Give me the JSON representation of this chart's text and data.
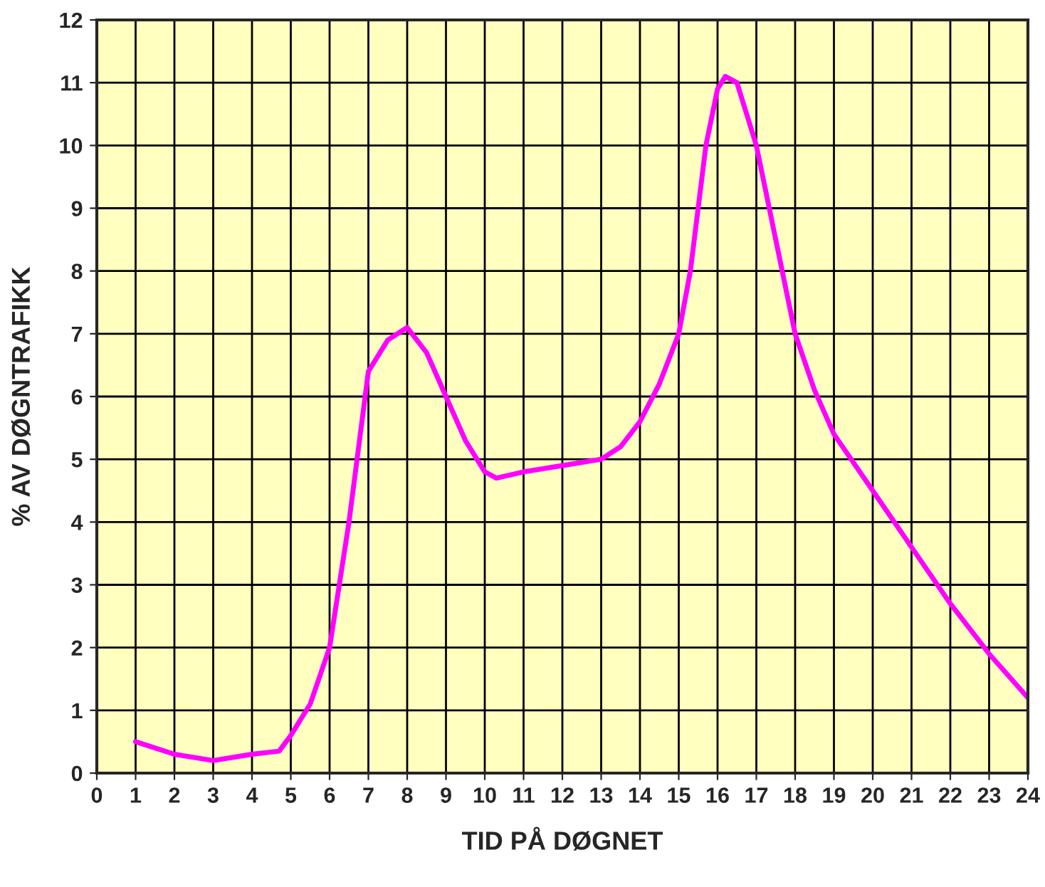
{
  "chart_data": {
    "type": "line",
    "xlabel": "TID PÅ DØGNET",
    "ylabel": "% AV DØGNTRAFIKK",
    "x": [
      1,
      2,
      3,
      4,
      4.7,
      5,
      5.5,
      6,
      6.5,
      7,
      7.5,
      8,
      8.5,
      9,
      9.5,
      10,
      10.3,
      11,
      12,
      13,
      13.5,
      14,
      14.5,
      15,
      15.3,
      15.7,
      16,
      16.2,
      16.5,
      17,
      17.5,
      18,
      18.5,
      19,
      20,
      21,
      22,
      23,
      24
    ],
    "series": [
      {
        "color": "#ff00ff",
        "values": [
          0.5,
          0.3,
          0.2,
          0.3,
          0.35,
          0.6,
          1.1,
          2,
          4,
          6.4,
          6.9,
          7.1,
          6.7,
          6,
          5.3,
          4.8,
          4.7,
          4.8,
          4.9,
          5,
          5.2,
          5.6,
          6.2,
          7,
          8,
          10,
          10.9,
          11.1,
          11,
          10,
          8.5,
          7,
          6.1,
          5.4,
          4.5,
          3.6,
          2.7,
          1.9,
          1.2
        ]
      }
    ],
    "xlim": [
      0,
      24
    ],
    "ylim": [
      0,
      12
    ],
    "xticks": [
      0,
      1,
      2,
      3,
      4,
      5,
      6,
      7,
      8,
      9,
      10,
      11,
      12,
      13,
      14,
      15,
      16,
      17,
      18,
      19,
      20,
      21,
      22,
      23,
      24
    ],
    "yticks": [
      0,
      1,
      2,
      3,
      4,
      5,
      6,
      7,
      8,
      9,
      10,
      11,
      12
    ],
    "grid": true,
    "legend": false,
    "marker": "none",
    "line_style": "solid"
  }
}
